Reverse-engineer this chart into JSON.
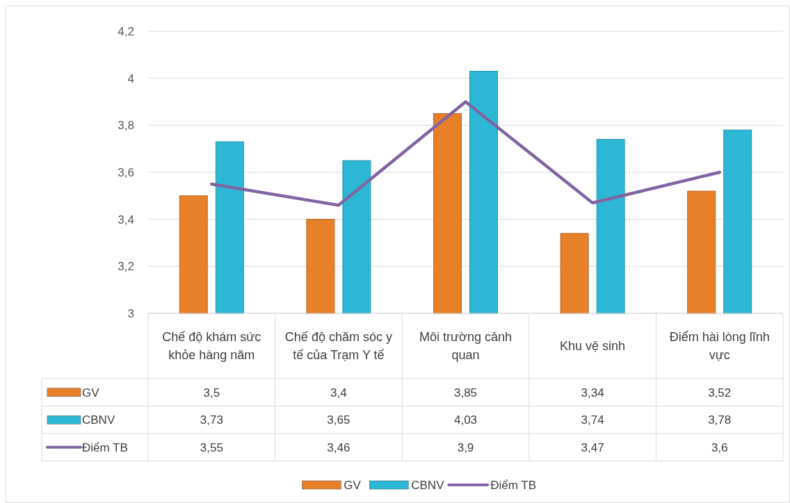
{
  "chart_data": {
    "type": "bar",
    "categories": [
      "Chế độ khám sức khỏe hàng năm",
      "Chế độ chăm sóc y tế của Trạm Y tế",
      "Môi trường cảnh quan",
      "Khu vệ sinh",
      "Điểm hài lòng lĩnh vực"
    ],
    "series": [
      {
        "name": "GV",
        "type": "bar",
        "color": "#e8802a",
        "values": [
          3.5,
          3.4,
          3.85,
          3.34,
          3.52
        ],
        "value_labels": [
          "3,5",
          "3,4",
          "3,85",
          "3,34",
          "3,52"
        ]
      },
      {
        "name": "CBNV",
        "type": "bar",
        "color": "#2cb8d4",
        "values": [
          3.73,
          3.65,
          4.03,
          3.74,
          3.78
        ],
        "value_labels": [
          "3,73",
          "3,65",
          "4,03",
          "3,74",
          "3,78"
        ]
      },
      {
        "name": "Điểm TB",
        "type": "line",
        "color": "#8064a2",
        "values": [
          3.55,
          3.46,
          3.9,
          3.47,
          3.6
        ],
        "value_labels": [
          "3,55",
          "3,46",
          "3,9",
          "3,47",
          "3,6"
        ]
      }
    ],
    "ylim": [
      3,
      4.2
    ],
    "yticks": [
      {
        "value": 3,
        "label": "3"
      },
      {
        "value": 3.2,
        "label": "3,2"
      },
      {
        "value": 3.4,
        "label": "3,4"
      },
      {
        "value": 3.6,
        "label": "3,6"
      },
      {
        "value": 3.8,
        "label": "3,8"
      },
      {
        "value": 4,
        "label": "4"
      },
      {
        "value": 4.2,
        "label": "4,2"
      }
    ],
    "grid": "y",
    "legend": "bottom",
    "marker": "none",
    "line_style": "solid"
  }
}
